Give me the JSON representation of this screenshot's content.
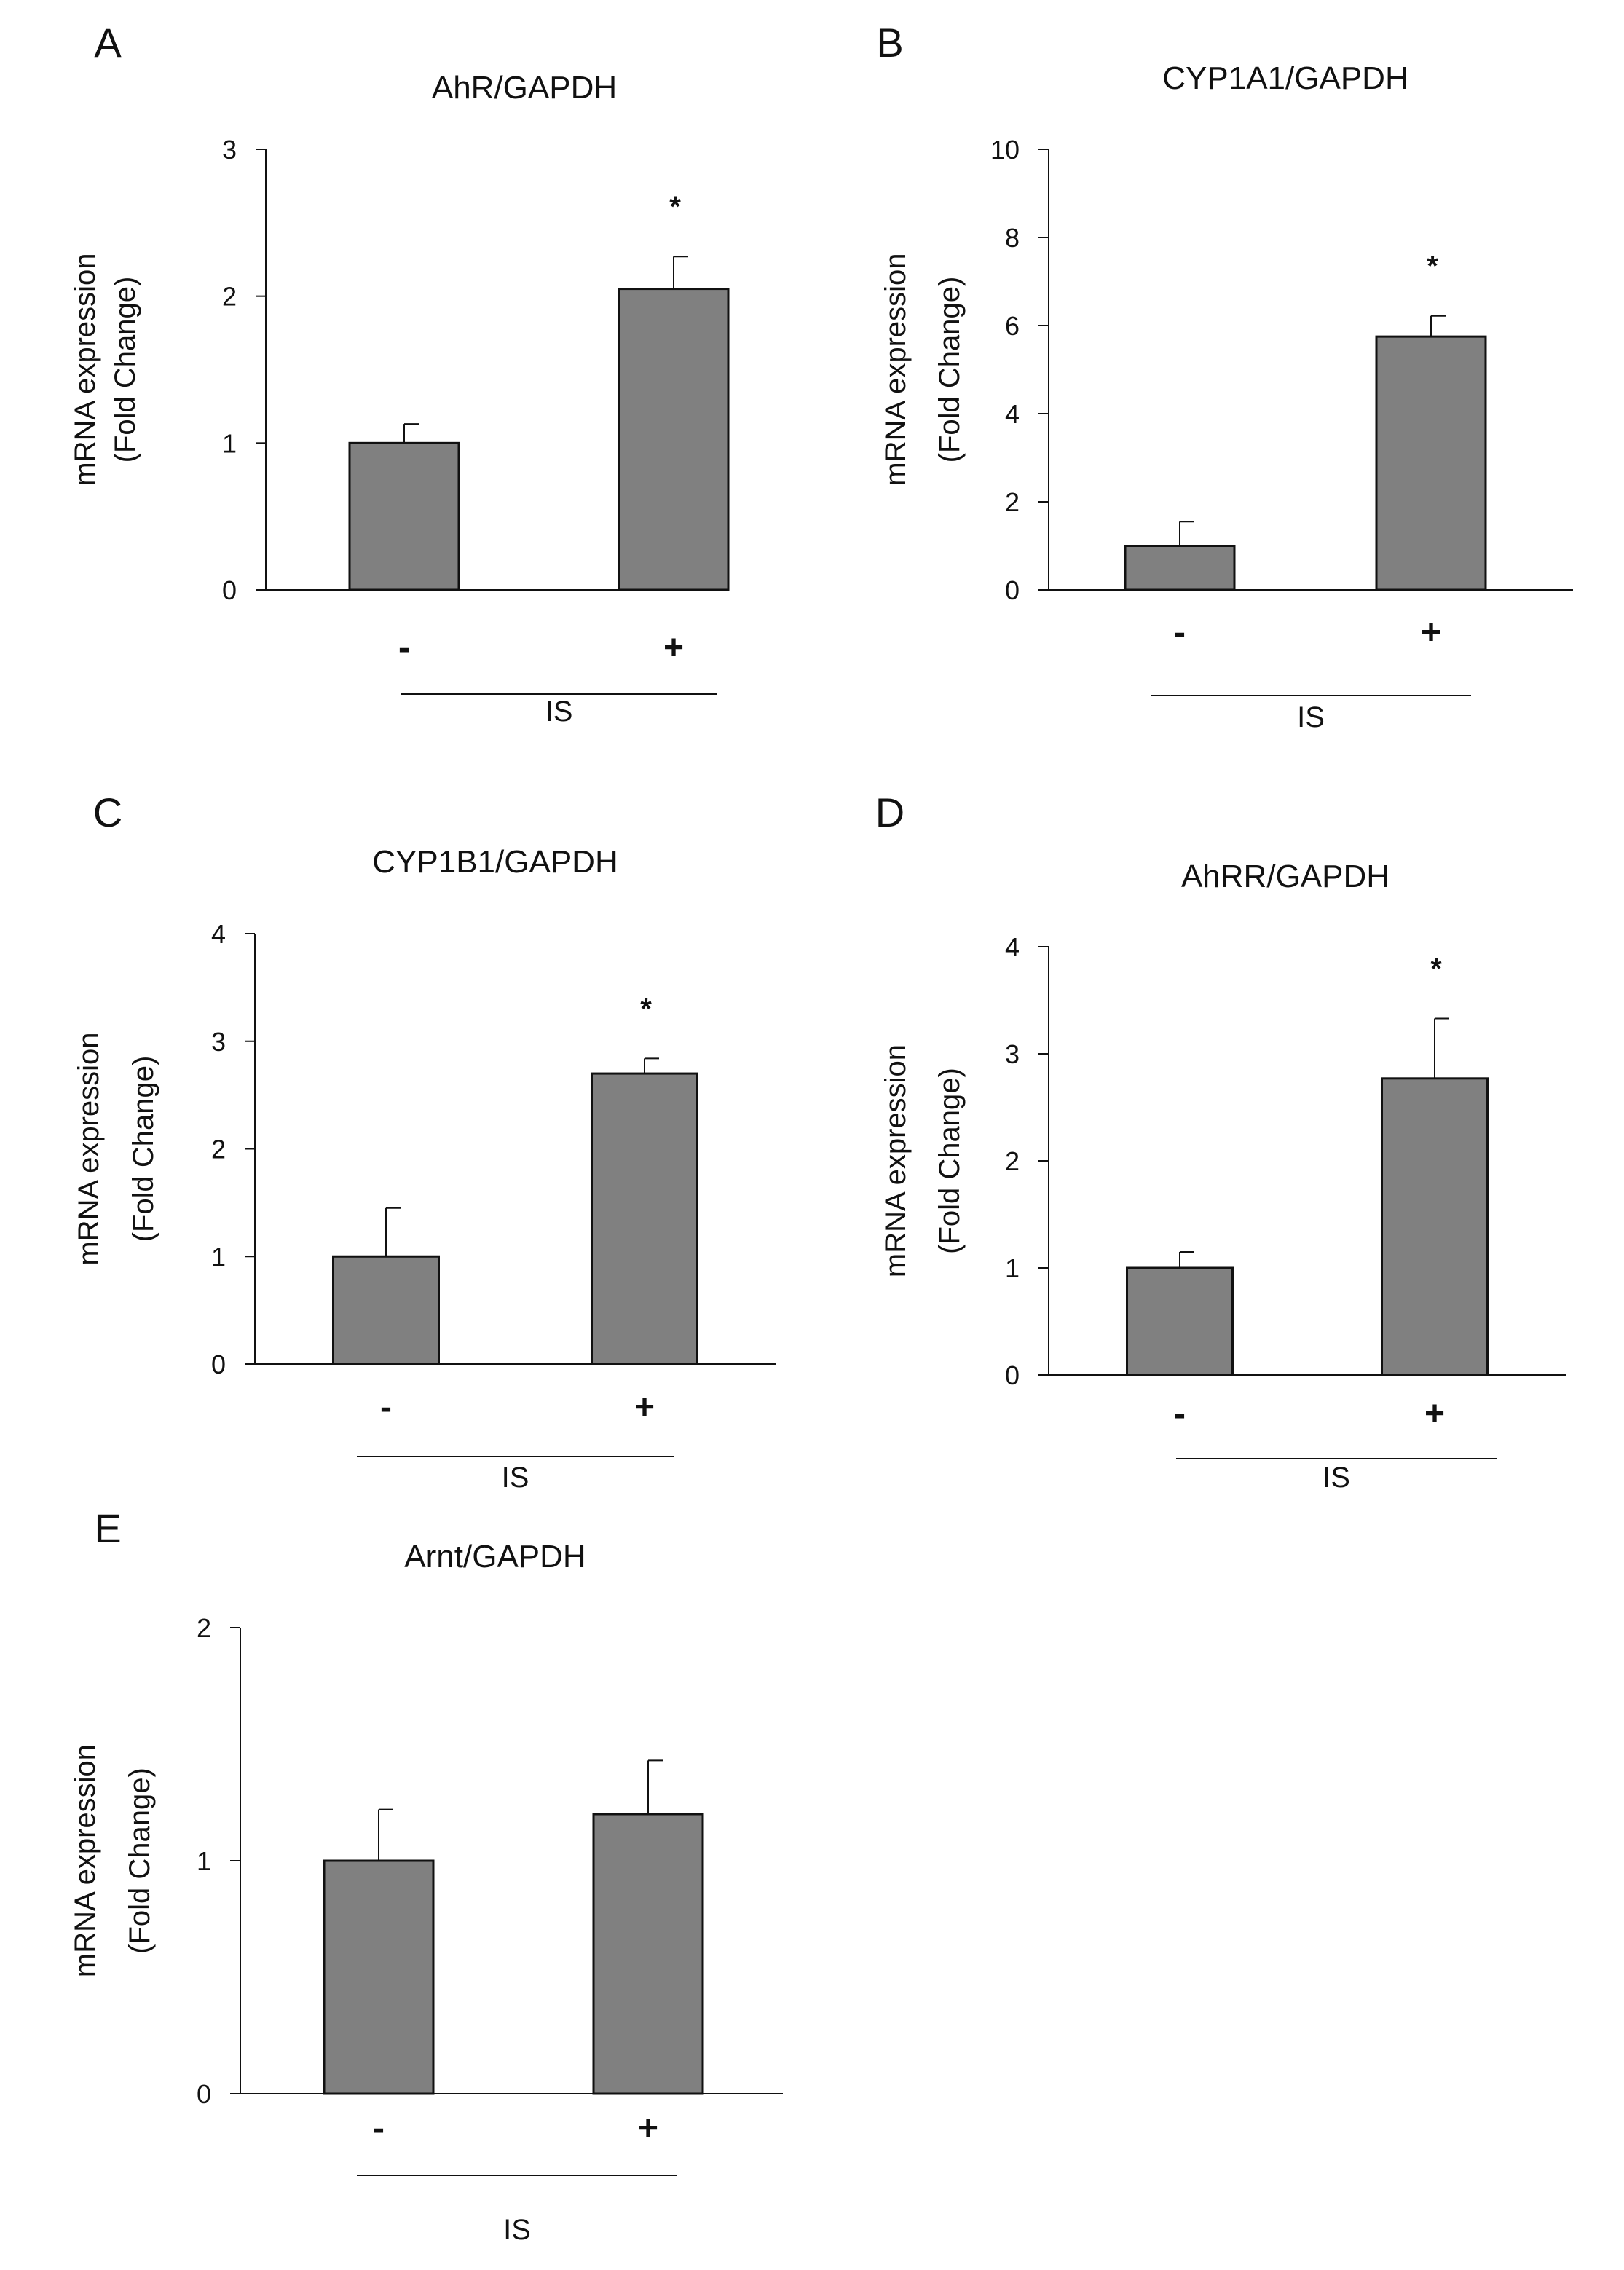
{
  "figure": {
    "ylabel_line1": "mRNA expression",
    "ylabel_line2": "(Fold Change)",
    "factor_label": "IS",
    "categories": [
      "-",
      "+"
    ],
    "bar_color": "#808080",
    "stroke_color": "#111111"
  },
  "chart_data": [
    {
      "panel": "A",
      "type": "bar",
      "title": "AhR/GAPDH",
      "xlabel": "IS",
      "ylabel": "mRNA expression (Fold Change)",
      "categories": [
        "-",
        "+"
      ],
      "values": [
        1.0,
        2.05
      ],
      "errors": [
        0.13,
        0.22
      ],
      "significance": [
        "",
        "*"
      ],
      "ylim": [
        0,
        3
      ],
      "yticks": [
        0,
        1,
        2,
        3
      ],
      "ytick_labels": [
        "0",
        "1",
        "2",
        "3"
      ]
    },
    {
      "panel": "B",
      "type": "bar",
      "title": "CYP1A1/GAPDH",
      "xlabel": "IS",
      "ylabel": "mRNA expression (Fold Change)",
      "categories": [
        "-",
        "+"
      ],
      "values": [
        1.0,
        5.75
      ],
      "errors": [
        0.55,
        0.47
      ],
      "significance": [
        "",
        "*"
      ],
      "ylim": [
        0,
        10
      ],
      "yticks": [
        0,
        2,
        4,
        6,
        8,
        10
      ],
      "ytick_labels": [
        "0",
        "2",
        "4",
        "6",
        "8",
        "10"
      ]
    },
    {
      "panel": "C",
      "type": "bar",
      "title": "CYP1B1/GAPDH",
      "xlabel": "IS",
      "ylabel": "mRNA expression (Fold Change)",
      "categories": [
        "-",
        "+"
      ],
      "values": [
        1.0,
        2.7
      ],
      "errors": [
        0.45,
        0.14
      ],
      "significance": [
        "",
        "*"
      ],
      "ylim": [
        0,
        4
      ],
      "yticks": [
        0,
        1,
        2,
        3,
        4
      ],
      "ytick_labels": [
        "0",
        "1",
        "2",
        "3",
        "4"
      ]
    },
    {
      "panel": "D",
      "type": "bar",
      "title": "AhRR/GAPDH",
      "xlabel": "IS",
      "ylabel": "mRNA expression (Fold Change)",
      "categories": [
        "-",
        "+"
      ],
      "values": [
        1.0,
        2.77
      ],
      "errors": [
        0.15,
        0.56
      ],
      "significance": [
        "",
        "*"
      ],
      "ylim": [
        0,
        4
      ],
      "yticks": [
        0,
        1,
        2,
        3,
        4
      ],
      "ytick_labels": [
        "0",
        "1",
        "2",
        "3",
        "4"
      ]
    },
    {
      "panel": "E",
      "type": "bar",
      "title": "Arnt/GAPDH",
      "xlabel": "IS",
      "ylabel": "mRNA expression (Fold Change)",
      "categories": [
        "-",
        "+"
      ],
      "values": [
        1.0,
        1.2
      ],
      "errors": [
        0.22,
        0.23
      ],
      "significance": [
        "",
        ""
      ],
      "ylim": [
        0,
        2
      ],
      "yticks": [
        0,
        1,
        2
      ],
      "ytick_labels": [
        "0",
        "1",
        "2"
      ]
    }
  ]
}
